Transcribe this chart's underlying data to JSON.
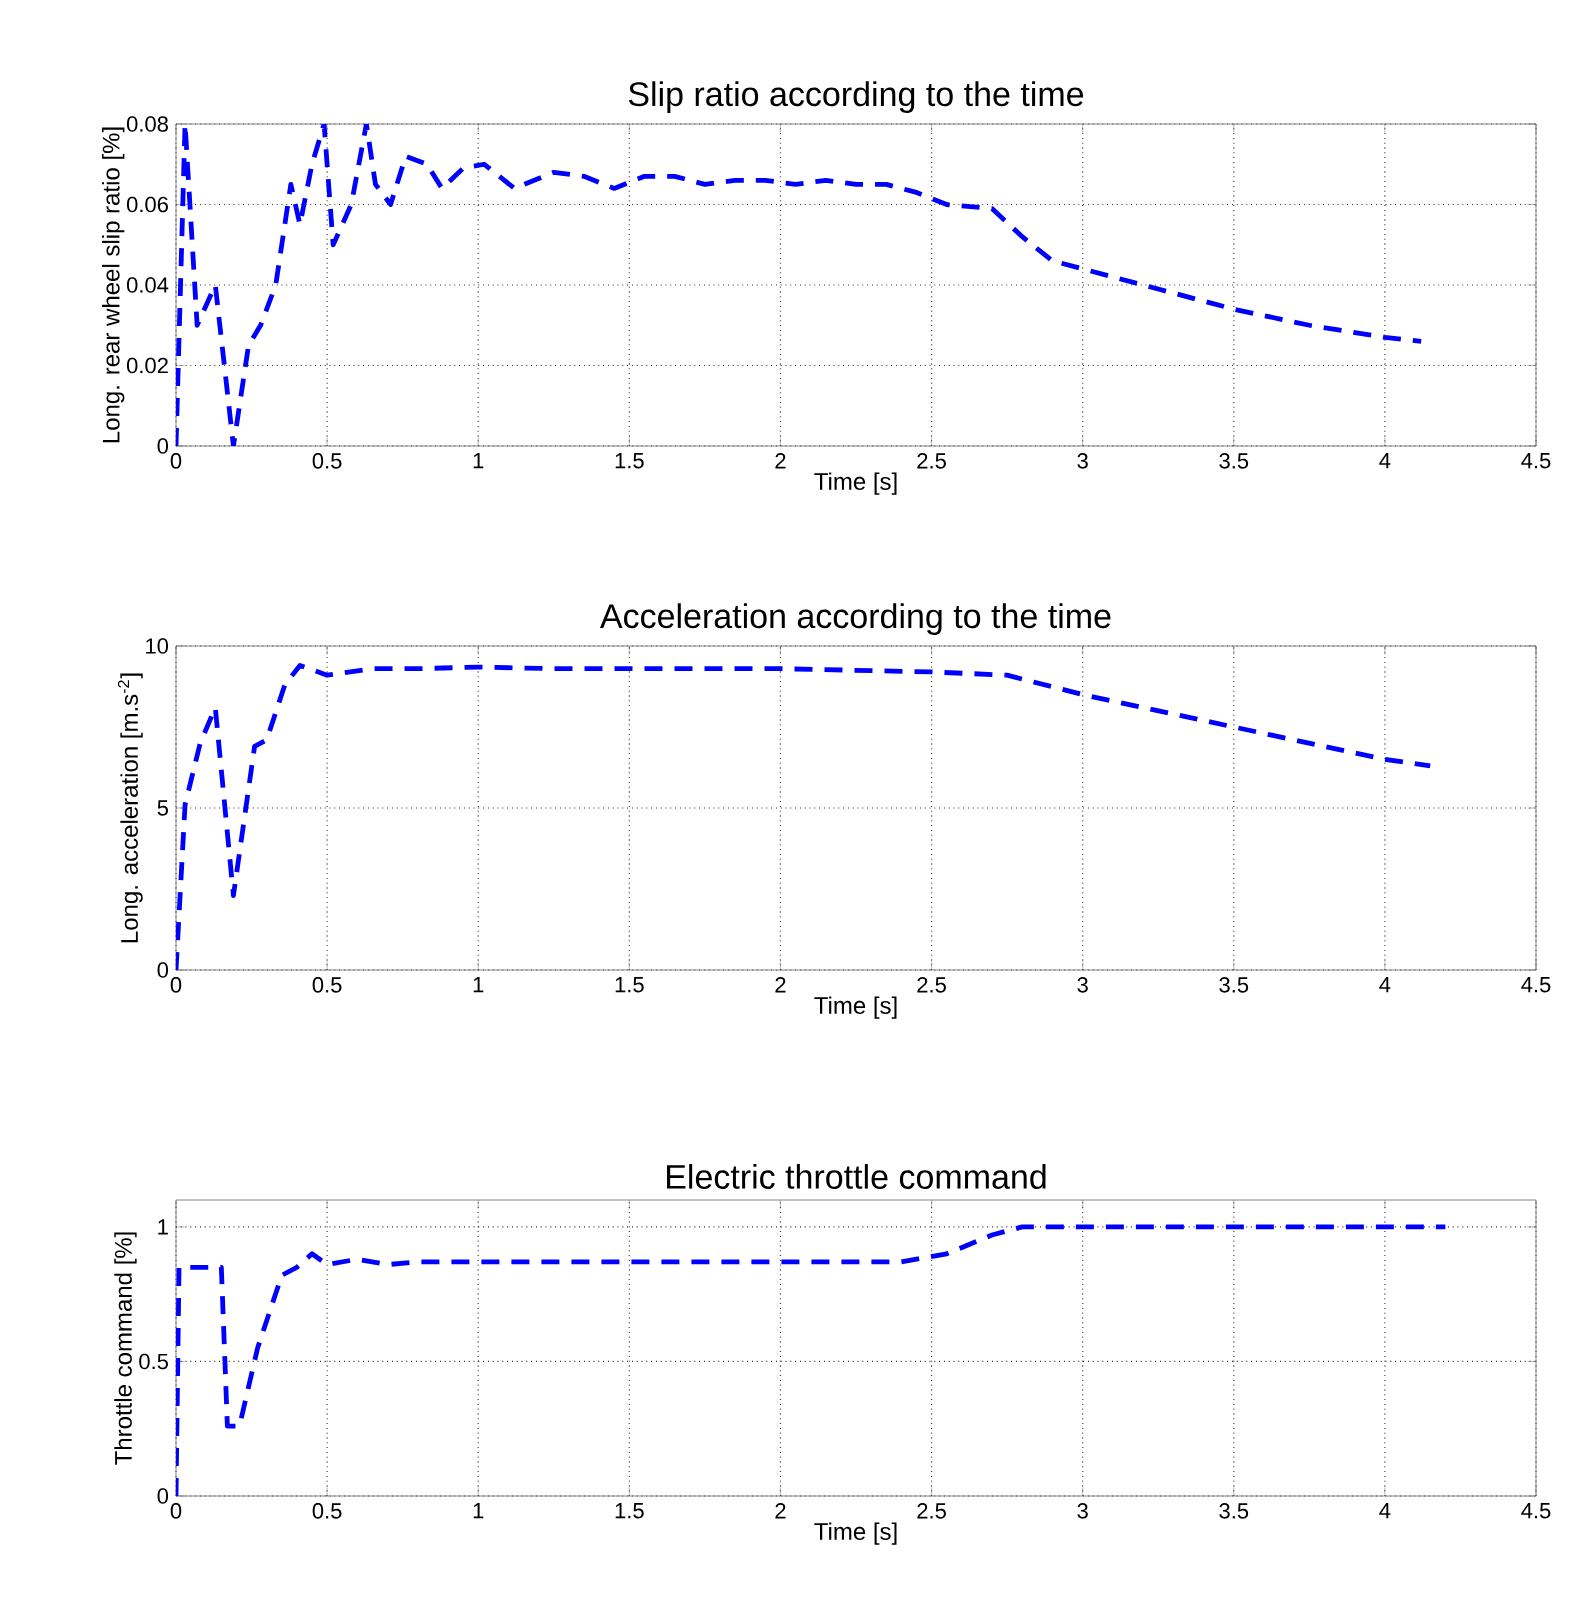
{
  "chart_data": [
    {
      "type": "line",
      "title": "Slip ratio according to the time",
      "xlabel": "Time [s]",
      "ylabel": "Long. rear wheel slip ratio [%]",
      "color": "#0000ff",
      "line_style": "dashed",
      "grid": true,
      "marker": "none",
      "x": [
        0,
        0.03,
        0.07,
        0.13,
        0.19,
        0.24,
        0.28,
        0.33,
        0.38,
        0.41,
        0.45,
        0.49,
        0.52,
        0.58,
        0.63,
        0.66,
        0.71,
        0.76,
        0.83,
        0.88,
        0.95,
        1.02,
        1.12,
        1.25,
        1.35,
        1.45,
        1.55,
        1.65,
        1.75,
        1.85,
        1.95,
        2.05,
        2.15,
        2.25,
        2.35,
        2.45,
        2.55,
        2.7,
        2.8,
        2.9,
        3.0,
        3.25,
        3.5,
        3.75,
        4.0,
        4.12
      ],
      "values": [
        0,
        0.08,
        0.03,
        0.04,
        0,
        0.025,
        0.03,
        0.04,
        0.065,
        0.055,
        0.07,
        0.08,
        0.05,
        0.06,
        0.08,
        0.065,
        0.06,
        0.072,
        0.07,
        0.064,
        0.069,
        0.07,
        0.064,
        0.068,
        0.067,
        0.064,
        0.067,
        0.067,
        0.065,
        0.066,
        0.066,
        0.065,
        0.066,
        0.065,
        0.065,
        0.063,
        0.06,
        0.059,
        0.052,
        0.046,
        0.044,
        0.039,
        0.034,
        0.03,
        0.027,
        0.026
      ],
      "xlim": [
        0,
        4.5
      ],
      "ylim": [
        0,
        0.08
      ],
      "xticks": [
        0,
        0.5,
        1,
        1.5,
        2,
        2.5,
        3,
        3.5,
        4,
        4.5
      ],
      "yticks": [
        0,
        0.02,
        0.04,
        0.06,
        0.08
      ]
    },
    {
      "type": "line",
      "title": "Acceleration according to the time",
      "xlabel": "Time [s]",
      "ylabel": "Long. acceleration [m.s$^{-2}$]",
      "color": "#0000ff",
      "line_style": "dashed",
      "grid": true,
      "marker": "none",
      "x": [
        0,
        0.03,
        0.08,
        0.13,
        0.19,
        0.26,
        0.3,
        0.36,
        0.41,
        0.5,
        0.65,
        0.8,
        1.0,
        1.25,
        1.5,
        2.0,
        2.5,
        2.75,
        3.0,
        3.5,
        4.0,
        4.15
      ],
      "values": [
        0,
        5.1,
        7.0,
        8.1,
        2.3,
        6.9,
        7.1,
        8.8,
        9.4,
        9.1,
        9.3,
        9.3,
        9.35,
        9.3,
        9.3,
        9.3,
        9.2,
        9.1,
        8.5,
        7.5,
        6.5,
        6.3
      ],
      "xlim": [
        0,
        4.5
      ],
      "ylim": [
        0,
        10
      ],
      "xticks": [
        0,
        0.5,
        1,
        1.5,
        2,
        2.5,
        3,
        3.5,
        4,
        4.5
      ],
      "yticks": [
        0,
        5,
        10
      ]
    },
    {
      "type": "line",
      "title": "Electric throttle command",
      "xlabel": "Time [s]",
      "ylabel": "Throttle command [%]",
      "color": "#0000ff",
      "line_style": "dashed",
      "grid": true,
      "marker": "none",
      "x": [
        0,
        0.01,
        0.15,
        0.17,
        0.21,
        0.27,
        0.35,
        0.4,
        0.45,
        0.5,
        0.6,
        0.7,
        0.8,
        1.0,
        1.5,
        2.0,
        2.4,
        2.55,
        2.7,
        2.8,
        4.2
      ],
      "values": [
        0,
        0.85,
        0.85,
        0.26,
        0.26,
        0.55,
        0.82,
        0.85,
        0.9,
        0.86,
        0.88,
        0.86,
        0.87,
        0.87,
        0.87,
        0.87,
        0.87,
        0.9,
        0.97,
        1.0,
        1.0
      ],
      "xlim": [
        0,
        4.5
      ],
      "ylim": [
        0,
        1.1
      ],
      "xticks": [
        0,
        0.5,
        1,
        1.5,
        2,
        2.5,
        3,
        3.5,
        4,
        4.5
      ],
      "yticks": [
        0,
        0.5,
        1
      ]
    }
  ]
}
